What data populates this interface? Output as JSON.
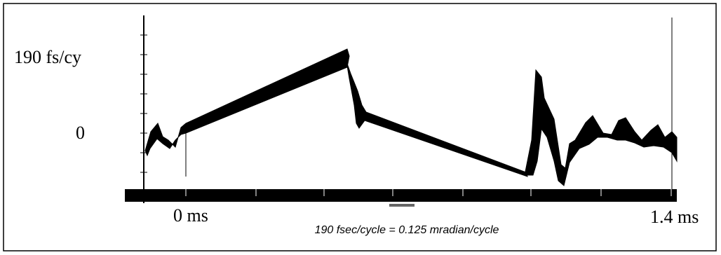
{
  "y_labels": {
    "top": "190 fs/cy",
    "zero": "0"
  },
  "x_labels": {
    "start": "0 ms",
    "end": "1.4 ms"
  },
  "caption": "190 fsec/cycle = 0.125 mradian/cycle"
}
